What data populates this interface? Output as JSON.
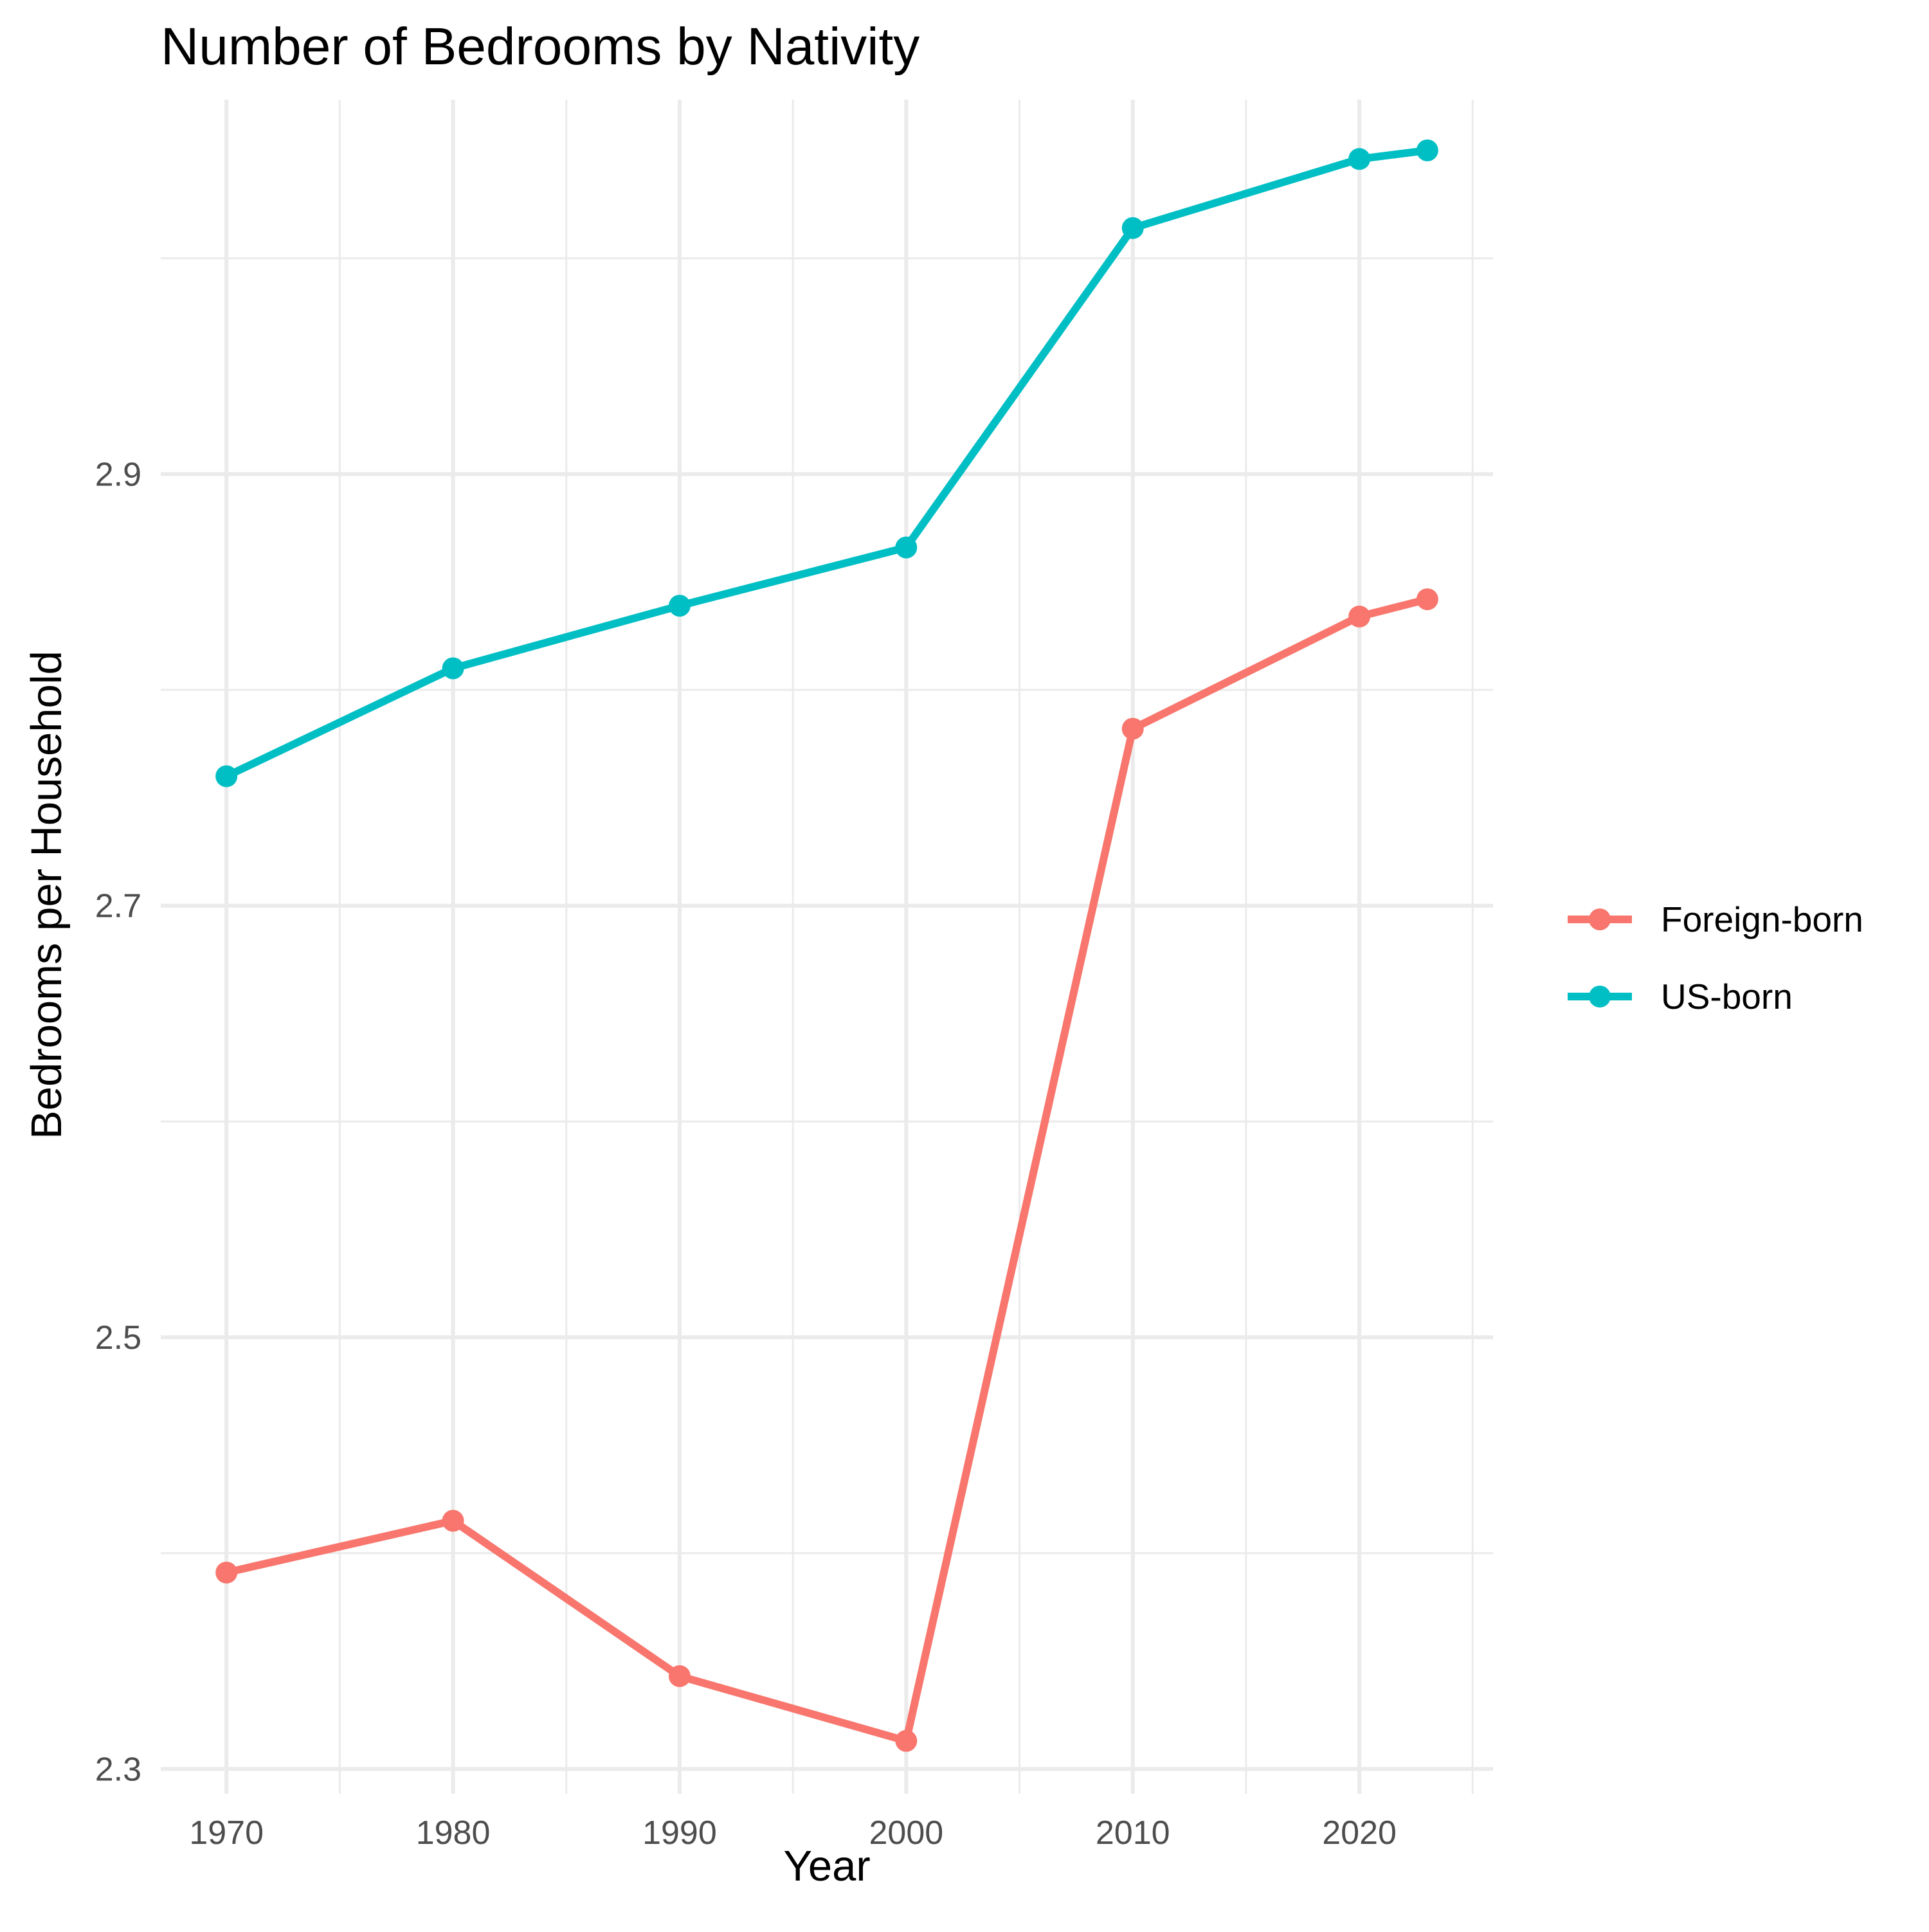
{
  "chart_data": {
    "type": "line",
    "title": "Number of Bedrooms by Nativity",
    "xlabel": "Year",
    "ylabel": "Bedrooms per Household",
    "x": [
      1970,
      1980,
      1990,
      2000,
      2010,
      2020,
      2023
    ],
    "x_ticks": [
      1970,
      1980,
      1990,
      2000,
      2010,
      2020
    ],
    "x_tick_labels": [
      "1970",
      "1980",
      "1990",
      "2000",
      "2010",
      "2020"
    ],
    "y_ticks": [
      2.3,
      2.5,
      2.7,
      2.9
    ],
    "y_tick_labels": [
      "2.3",
      "2.5",
      "2.7",
      "2.9"
    ],
    "xlim": [
      1967.1,
      2025.9
    ],
    "ylim": [
      2.2885,
      3.0735
    ],
    "grid": true,
    "legend_position": "right",
    "series": [
      {
        "name": "Foreign-born",
        "color": "#F8766D",
        "values": [
          2.391,
          2.415,
          2.343,
          2.313,
          2.782,
          2.834,
          2.842
        ]
      },
      {
        "name": "US-born",
        "color": "#00BFC4",
        "values": [
          2.76,
          2.81,
          2.839,
          2.866,
          3.014,
          3.046,
          3.05
        ]
      }
    ]
  }
}
